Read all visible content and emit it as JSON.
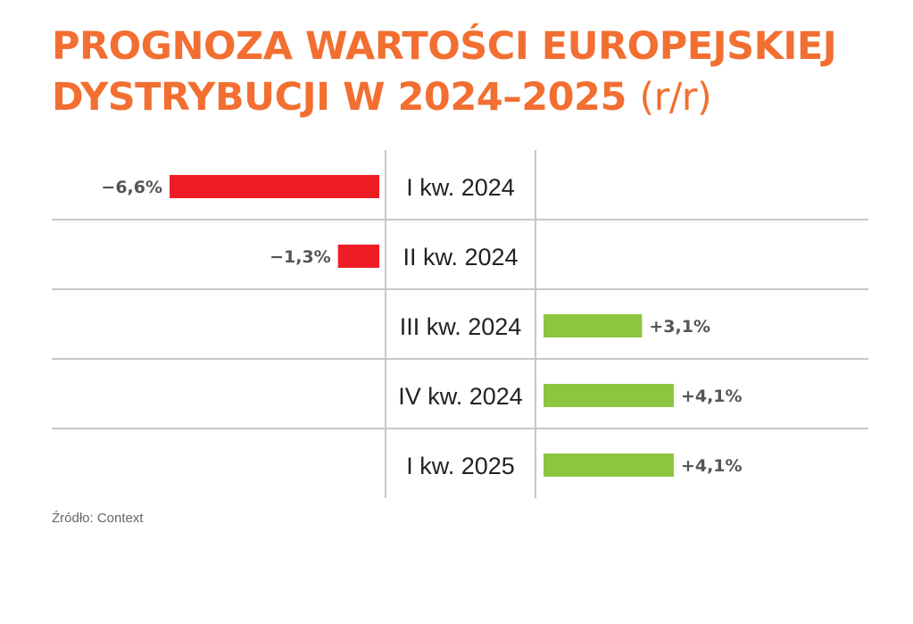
{
  "title": {
    "main_line1": "PROGNOZA WARTOŚCI EUROPEJSKIEJ",
    "main_line2": "DYSTRYBUCJI W 2024–2025",
    "unit": "(r/r)"
  },
  "source": "Źródło: Context",
  "colors": {
    "title": "#f26f31",
    "negative": "#ee1c25",
    "positive": "#8cc63f",
    "grid": "#c8c8c8"
  },
  "chart_data": {
    "type": "bar",
    "orientation": "horizontal",
    "title": "PROGNOZA WARTOŚCI EUROPEJSKIEJ DYSTRYBUCJI W 2024–2025 (r/r)",
    "unit": "%",
    "categories": [
      "I kw. 2024",
      "II kw. 2024",
      "III kw. 2024",
      "IV kw. 2024",
      "I kw. 2025"
    ],
    "values": [
      -6.6,
      -1.3,
      3.1,
      4.1,
      4.1
    ],
    "value_labels": [
      "−6,6%",
      "−1,3%",
      "+3,1%",
      "+4,1%",
      "+4,1%"
    ],
    "grid": true,
    "legend": "none"
  }
}
